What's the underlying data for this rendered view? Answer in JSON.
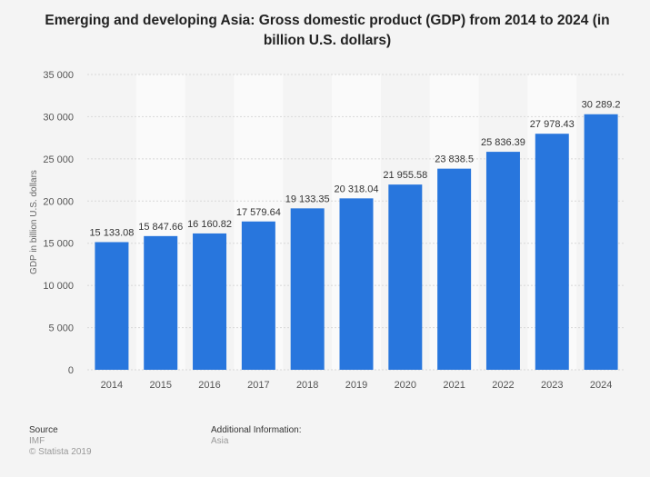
{
  "chart_data": {
    "type": "bar",
    "title": "Emerging and developing Asia: Gross domestic product (GDP) from 2014 to 2024 (in billion U.S. dollars)",
    "xlabel": "",
    "ylabel": "GDP in billion U.S. dollars",
    "categories": [
      "2014",
      "2015",
      "2016",
      "2017",
      "2018",
      "2019",
      "2020",
      "2021",
      "2022",
      "2023",
      "2024"
    ],
    "values": [
      15133.08,
      15847.66,
      16160.82,
      17579.64,
      19133.35,
      20318.04,
      21955.58,
      23838.5,
      25836.39,
      27978.43,
      30289.2
    ],
    "data_labels": [
      "15 133.08",
      "15 847.66",
      "16 160.82",
      "17 579.64",
      "19 133.35",
      "20 318.04",
      "21 955.58",
      "23 838.5",
      "25 836.39",
      "27 978.43",
      "30 289.2"
    ],
    "ylim": [
      0,
      35000
    ],
    "yticks": [
      0,
      5000,
      10000,
      15000,
      20000,
      25000,
      30000,
      35000
    ],
    "ytick_labels": [
      "0",
      "5 000",
      "10 000",
      "15 000",
      "20 000",
      "25 000",
      "30 000",
      "35 000"
    ],
    "grid": true,
    "bar_color": "#2876dd"
  },
  "footer": {
    "source_heading": "Source",
    "source": "IMF",
    "copyright": "© Statista 2019",
    "additional_heading": "Additional Information:",
    "additional": "Asia"
  }
}
